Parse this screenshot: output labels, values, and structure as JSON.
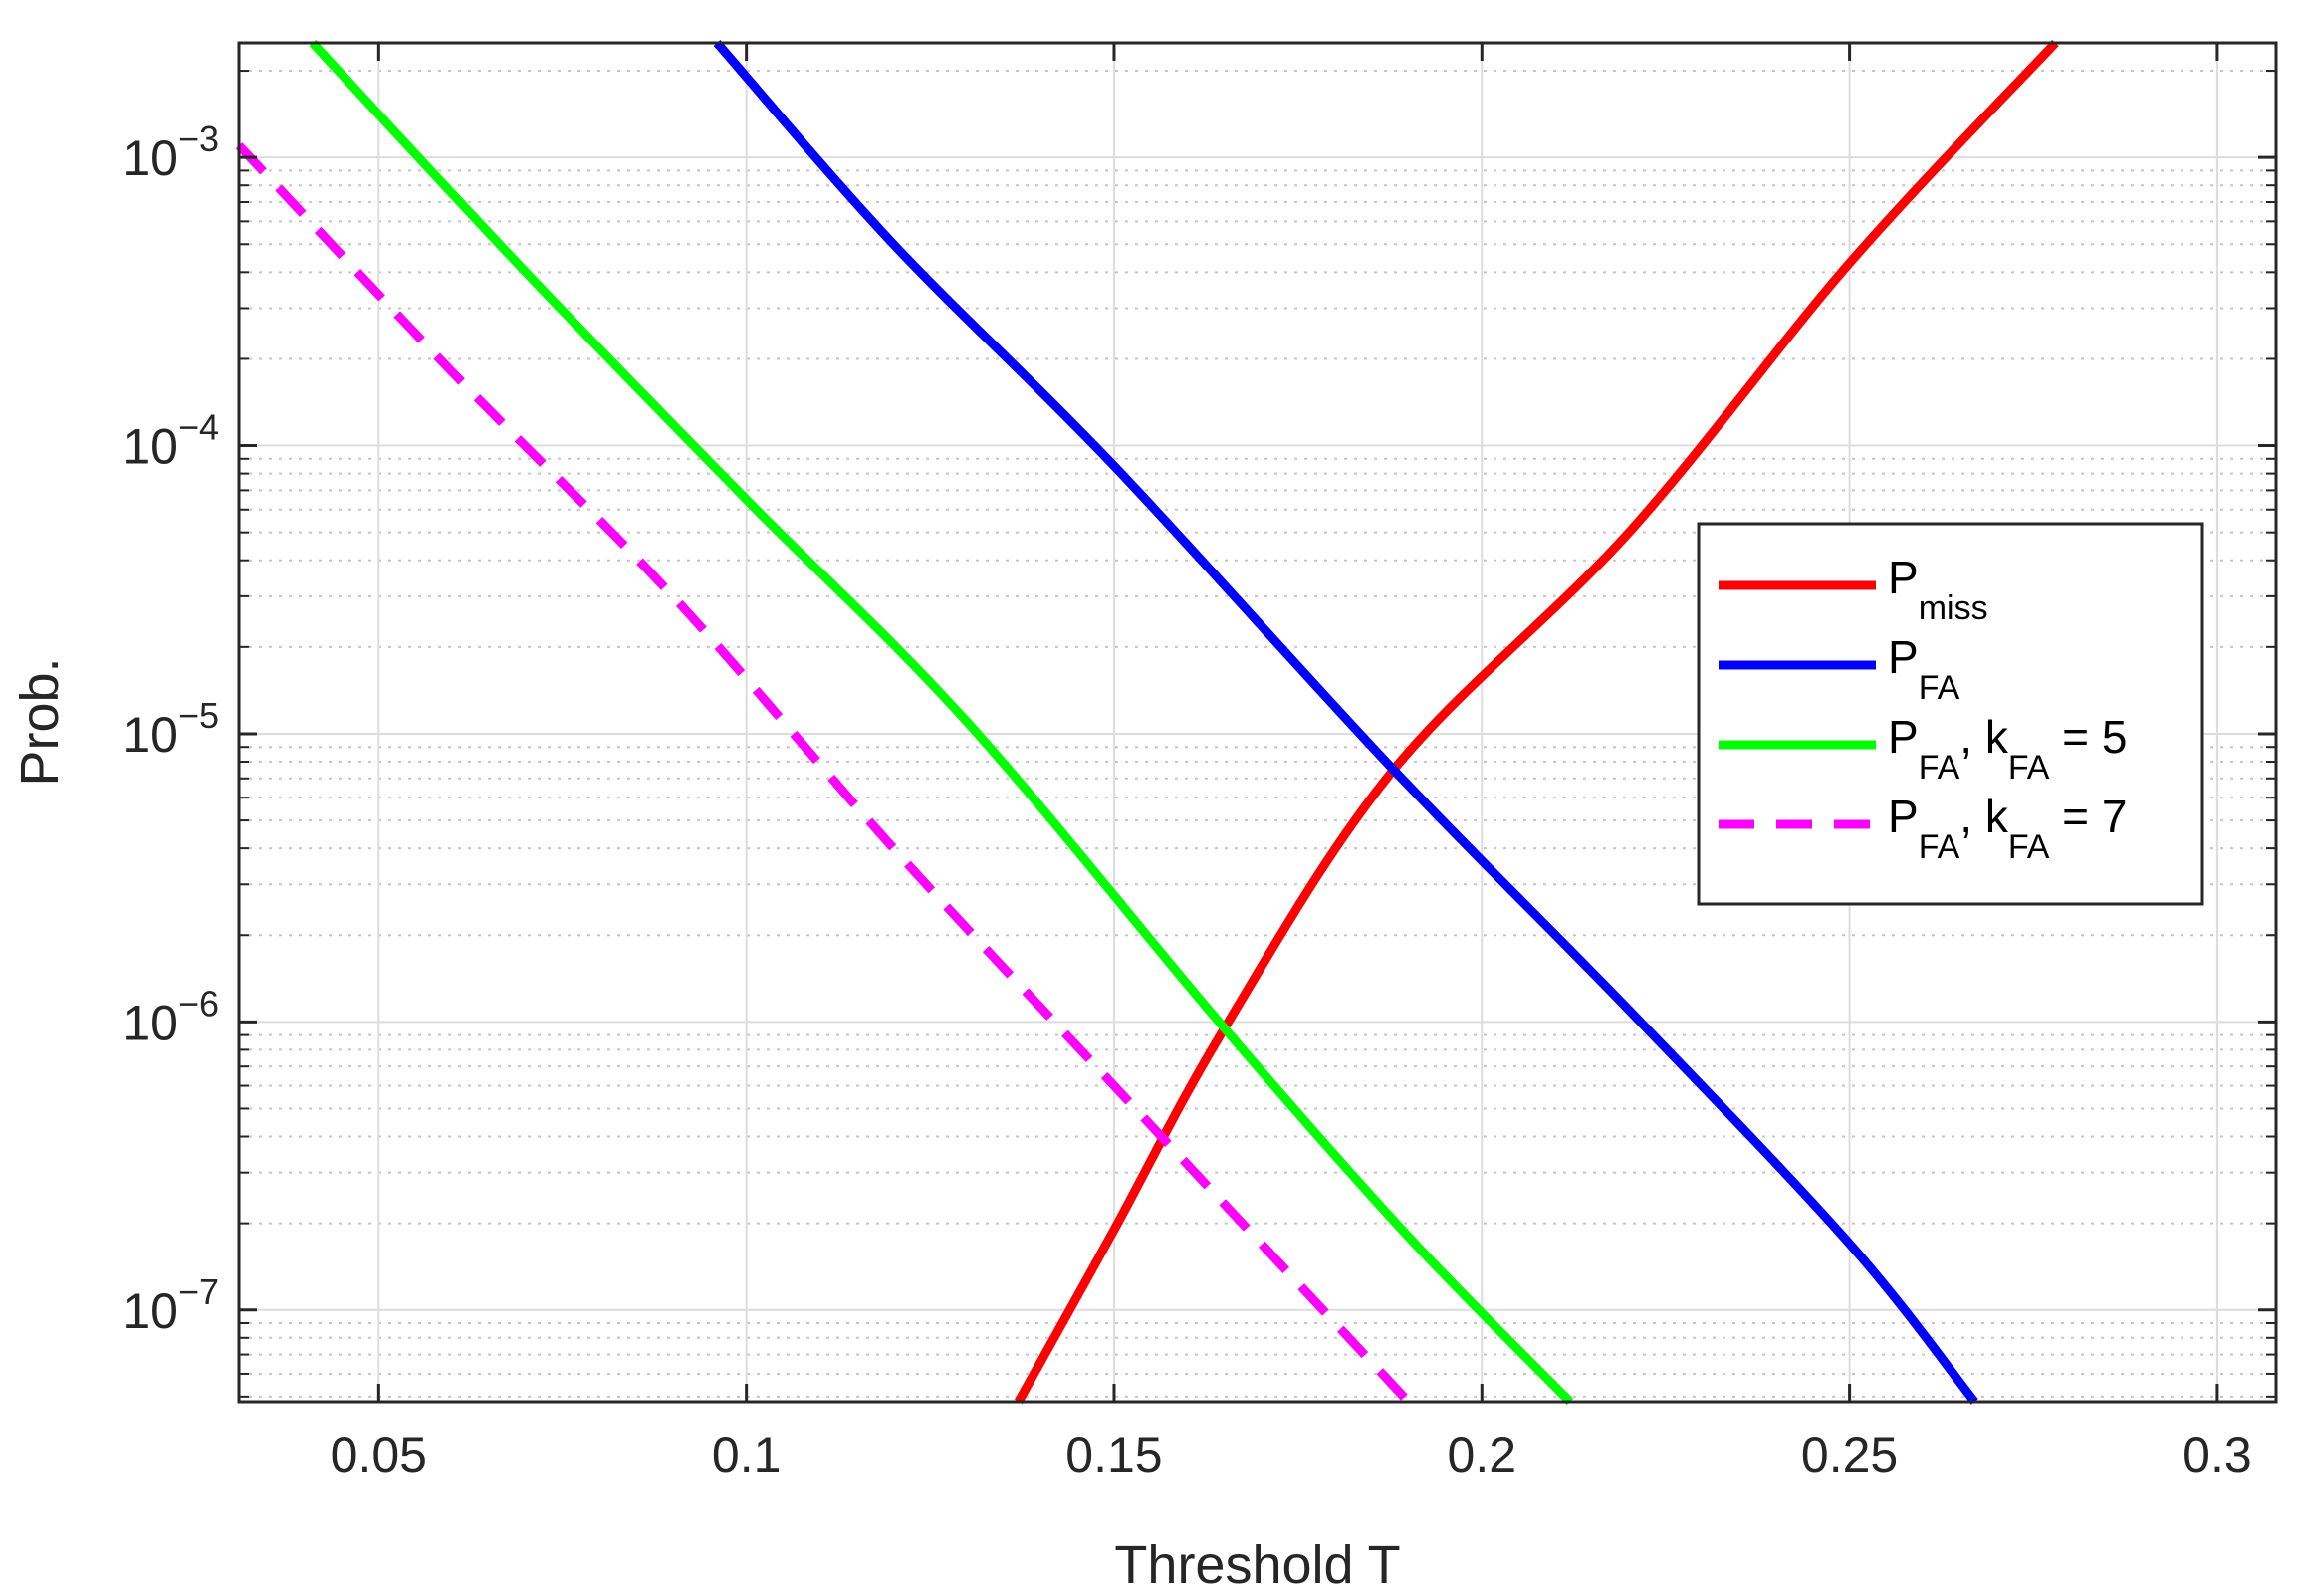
{
  "chart_data": {
    "type": "line",
    "xlabel": "Threshold T",
    "ylabel": "Prob.",
    "xscale": "linear",
    "yscale": "log",
    "xlim": [
      0.031,
      0.308
    ],
    "ylim": [
      4.8e-08,
      0.0025
    ],
    "x_ticks": [
      {
        "value": 0.05,
        "label": "0.05"
      },
      {
        "value": 0.1,
        "label": "0.1"
      },
      {
        "value": 0.15,
        "label": "0.15"
      },
      {
        "value": 0.2,
        "label": "0.2"
      },
      {
        "value": 0.25,
        "label": "0.25"
      },
      {
        "value": 0.3,
        "label": "0.3"
      }
    ],
    "y_ticks": [
      {
        "value": 1e-07,
        "base": "10",
        "exp": "−7"
      },
      {
        "value": 1e-06,
        "base": "10",
        "exp": "−6"
      },
      {
        "value": 1e-05,
        "base": "10",
        "exp": "−5"
      },
      {
        "value": 0.0001,
        "base": "10",
        "exp": "−4"
      },
      {
        "value": 0.001,
        "base": "10",
        "exp": "−3"
      }
    ],
    "grid": true,
    "minor_grid": true,
    "legend_position": "right",
    "series": [
      {
        "name": "P_miss",
        "legend_main": "P",
        "legend_sub": "miss",
        "legend_tail": "",
        "legend_sub2": "",
        "legend_tail2": "",
        "color": "#ff0000",
        "dash": "solid",
        "x": [
          0.137,
          0.15,
          0.165,
          0.188,
          0.22,
          0.25,
          0.278
        ],
        "y": [
          4.8e-08,
          1.9e-07,
          9.5e-07,
          7.5e-06,
          5e-05,
          0.00043,
          0.0025
        ]
      },
      {
        "name": "P_FA",
        "legend_main": "P",
        "legend_sub": "FA",
        "legend_tail": "",
        "legend_sub2": "",
        "legend_tail2": "",
        "color": "#0000ff",
        "dash": "solid",
        "x": [
          0.096,
          0.12,
          0.15,
          0.188,
          0.22,
          0.25,
          0.267
        ],
        "y": [
          0.0025,
          0.0005,
          8.5e-05,
          7.5e-06,
          1.1e-06,
          1.7e-07,
          4.8e-08
        ]
      },
      {
        "name": "P_FA, k_FA = 5",
        "legend_main": "P",
        "legend_sub": "FA",
        "legend_tail": ", k",
        "legend_sub2": "FA",
        "legend_tail2": " = 5",
        "color": "#00ff00",
        "dash": "solid",
        "x": [
          0.041,
          0.07,
          0.1,
          0.13,
          0.165,
          0.19,
          0.212
        ],
        "y": [
          0.0025,
          0.0004,
          6.5e-05,
          1.1e-05,
          9.5e-07,
          1.8e-07,
          4.8e-08
        ]
      },
      {
        "name": "P_FA, k_FA = 7",
        "legend_main": "P",
        "legend_sub": "FA",
        "legend_tail": ", k",
        "legend_sub2": "FA",
        "legend_tail2": " = 7",
        "color": "#ff00ff",
        "dash": "dashed",
        "x": [
          0.031,
          0.06,
          0.09,
          0.12,
          0.15,
          0.17,
          0.19
        ],
        "y": [
          0.0011,
          0.00018,
          3e-05,
          4e-06,
          6e-07,
          1.7e-07,
          4.8e-08
        ]
      }
    ]
  }
}
